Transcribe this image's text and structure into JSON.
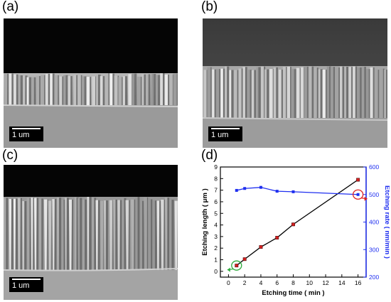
{
  "panels": {
    "a": {
      "label": "(a)",
      "scale": "1 um"
    },
    "b": {
      "label": "(b)",
      "scale": "1 um"
    },
    "c": {
      "label": "(c)",
      "scale": "1 um"
    },
    "d": {
      "label": "(d)"
    }
  },
  "chart_data": {
    "type": "line",
    "title": "",
    "xlabel": "Etching time ( min )",
    "ylabel_left": "Etching length ( μm )",
    "ylabel_right": "Etching rate ( nm/min )",
    "xlim": [
      -1,
      17
    ],
    "xticks": [
      0,
      2,
      4,
      6,
      8,
      10,
      12,
      14,
      16
    ],
    "ylim_left": [
      -0.5,
      9
    ],
    "yticks_left": [
      0,
      1,
      2,
      3,
      4,
      5,
      6,
      7,
      8,
      9
    ],
    "ylim_right": [
      200,
      600
    ],
    "yticks_right": [
      200,
      300,
      400,
      500,
      600
    ],
    "series": [
      {
        "axis": "left",
        "color": "#000000",
        "marker_color": "#d42020",
        "x": [
          1,
          2,
          4,
          6,
          8,
          16
        ],
        "y": [
          0.5,
          1.05,
          2.1,
          2.9,
          4.05,
          7.9
        ],
        "err": [
          0.1,
          0.1,
          0.12,
          0.15,
          0.15,
          0.15
        ]
      },
      {
        "axis": "right",
        "color": "#1f2ff0",
        "x": [
          1,
          2,
          4,
          6,
          8,
          16
        ],
        "y": [
          515,
          522,
          526,
          512,
          510,
          500
        ]
      }
    ],
    "annotations": [
      {
        "type": "circle",
        "color": "#2aaa3a",
        "x": 1,
        "y": 0.5,
        "axis": "left",
        "arrow": "left"
      },
      {
        "type": "circle",
        "color": "#e02020",
        "x": 16,
        "y": 500,
        "axis": "right",
        "arrow": "right"
      }
    ]
  },
  "colors": {
    "left_axis": "#000000",
    "right_axis": "#1f2ff0",
    "sem_dark": "#050505",
    "sem_substrate": "#8a8a8a"
  }
}
